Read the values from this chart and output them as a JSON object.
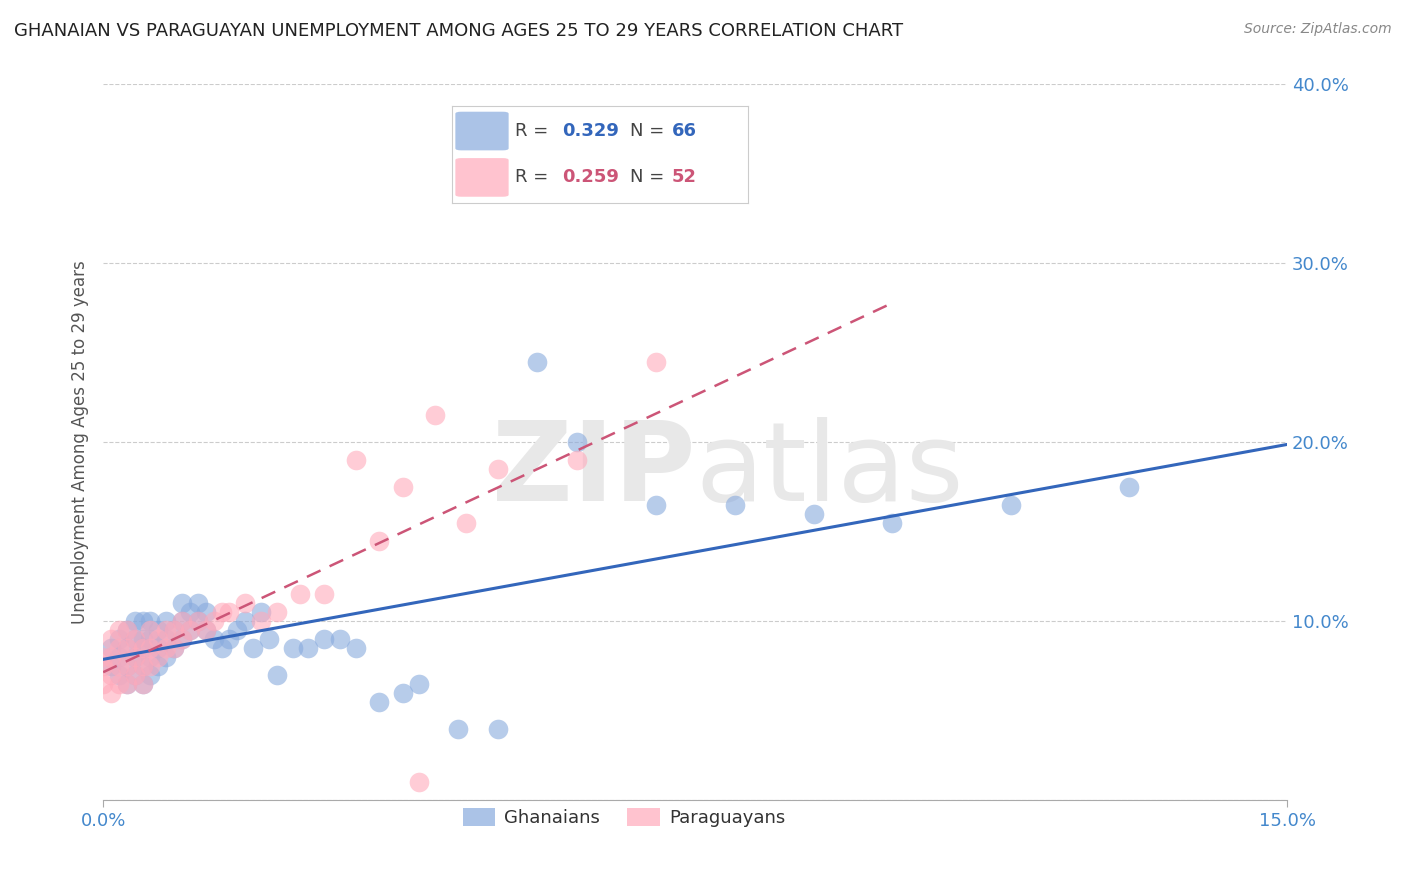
{
  "title": "GHANAIAN VS PARAGUAYAN UNEMPLOYMENT AMONG AGES 25 TO 29 YEARS CORRELATION CHART",
  "source": "Source: ZipAtlas.com",
  "ylabel": "Unemployment Among Ages 25 to 29 years",
  "xlim": [
    0.0,
    0.15
  ],
  "ylim": [
    -0.02,
    0.42
  ],
  "plot_ylim": [
    0.0,
    0.4
  ],
  "yticks_right": [
    0.0,
    0.1,
    0.2,
    0.3,
    0.4
  ],
  "ytick_labels_right": [
    "",
    "10.0%",
    "20.0%",
    "30.0%",
    "40.0%"
  ],
  "blue_color": "#88aadd",
  "pink_color": "#ffaabb",
  "line_blue": "#3366bb",
  "line_pink": "#cc5577",
  "axis_label_color": "#4488cc",
  "background_color": "#ffffff",
  "blue_scatter_x": [
    0.001,
    0.001,
    0.002,
    0.002,
    0.002,
    0.003,
    0.003,
    0.003,
    0.003,
    0.004,
    0.004,
    0.004,
    0.004,
    0.005,
    0.005,
    0.005,
    0.005,
    0.005,
    0.006,
    0.006,
    0.006,
    0.006,
    0.007,
    0.007,
    0.007,
    0.008,
    0.008,
    0.008,
    0.009,
    0.009,
    0.01,
    0.01,
    0.01,
    0.011,
    0.011,
    0.012,
    0.012,
    0.013,
    0.013,
    0.014,
    0.015,
    0.016,
    0.017,
    0.018,
    0.019,
    0.02,
    0.021,
    0.022,
    0.024,
    0.026,
    0.028,
    0.03,
    0.032,
    0.035,
    0.038,
    0.04,
    0.045,
    0.05,
    0.055,
    0.06,
    0.07,
    0.08,
    0.09,
    0.1,
    0.115,
    0.13
  ],
  "blue_scatter_y": [
    0.075,
    0.085,
    0.07,
    0.08,
    0.09,
    0.065,
    0.075,
    0.085,
    0.095,
    0.07,
    0.08,
    0.09,
    0.1,
    0.065,
    0.075,
    0.085,
    0.09,
    0.1,
    0.07,
    0.08,
    0.09,
    0.1,
    0.075,
    0.085,
    0.095,
    0.08,
    0.09,
    0.1,
    0.085,
    0.095,
    0.09,
    0.1,
    0.11,
    0.095,
    0.105,
    0.1,
    0.11,
    0.095,
    0.105,
    0.09,
    0.085,
    0.09,
    0.095,
    0.1,
    0.085,
    0.105,
    0.09,
    0.07,
    0.085,
    0.085,
    0.09,
    0.09,
    0.085,
    0.055,
    0.06,
    0.065,
    0.04,
    0.04,
    0.245,
    0.2,
    0.165,
    0.165,
    0.16,
    0.155,
    0.165,
    0.175
  ],
  "pink_scatter_x": [
    0.0,
    0.0,
    0.0,
    0.001,
    0.001,
    0.001,
    0.001,
    0.002,
    0.002,
    0.002,
    0.002,
    0.003,
    0.003,
    0.003,
    0.003,
    0.004,
    0.004,
    0.004,
    0.005,
    0.005,
    0.005,
    0.006,
    0.006,
    0.006,
    0.007,
    0.007,
    0.008,
    0.008,
    0.009,
    0.009,
    0.01,
    0.01,
    0.011,
    0.012,
    0.013,
    0.014,
    0.015,
    0.016,
    0.018,
    0.02,
    0.022,
    0.025,
    0.028,
    0.032,
    0.035,
    0.038,
    0.042,
    0.046,
    0.05,
    0.06,
    0.07,
    0.04
  ],
  "pink_scatter_y": [
    0.065,
    0.075,
    0.08,
    0.06,
    0.07,
    0.08,
    0.09,
    0.065,
    0.075,
    0.085,
    0.095,
    0.065,
    0.075,
    0.085,
    0.095,
    0.07,
    0.08,
    0.09,
    0.065,
    0.075,
    0.085,
    0.075,
    0.085,
    0.095,
    0.08,
    0.09,
    0.085,
    0.095,
    0.085,
    0.095,
    0.09,
    0.1,
    0.095,
    0.1,
    0.095,
    0.1,
    0.105,
    0.105,
    0.11,
    0.1,
    0.105,
    0.115,
    0.115,
    0.19,
    0.145,
    0.175,
    0.215,
    0.155,
    0.185,
    0.19,
    0.245,
    0.01
  ]
}
